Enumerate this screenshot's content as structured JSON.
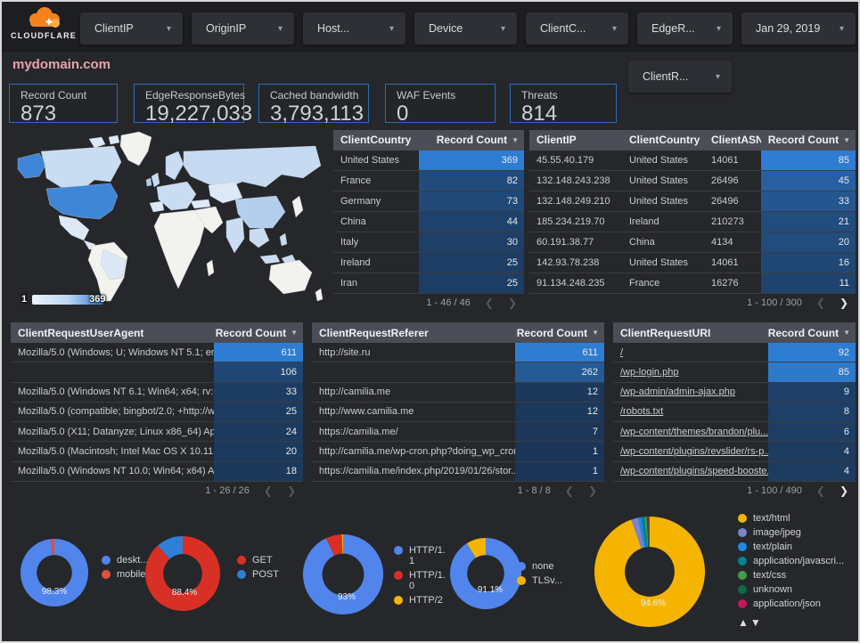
{
  "header": {
    "logo_text": "CLOUDFLARE",
    "filters": [
      {
        "label": "ClientIP"
      },
      {
        "label": "OriginIP"
      },
      {
        "label": "Host..."
      },
      {
        "label": "Device"
      },
      {
        "label": "ClientC..."
      },
      {
        "label": "EdgeR..."
      }
    ],
    "date_label": "Jan 29, 2019",
    "secondary_filter_label": "ClientR..."
  },
  "title": "mydomain.com",
  "scorecards": [
    {
      "label": "Record Count",
      "value": "873"
    },
    {
      "label": "EdgeResponseBytes",
      "value": "19,227,033"
    },
    {
      "label": "Cached bandwidth",
      "value": "3,793,113"
    },
    {
      "label": "WAF Events",
      "value": "0"
    },
    {
      "label": "Threats",
      "value": "814"
    }
  ],
  "map": {
    "legend_min": "1",
    "legend_max": "369"
  },
  "icons": {
    "caret": "▾",
    "sort_desc": "▼",
    "sort_asc": "▲",
    "chevron_left": "❮",
    "chevron_right": "❯"
  },
  "colors": {
    "bar_low": "#1B3555",
    "bar_high": "#2E7DD2",
    "accent_blue": "#2b6cb8",
    "title_pink": "#e8a3ab"
  },
  "tables": [
    {
      "name": "client-country",
      "headers": [
        "ClientCountry",
        "Record Count"
      ],
      "value_col": 1,
      "max": 369,
      "links": false,
      "rows": [
        [
          "United States",
          369
        ],
        [
          "France",
          82
        ],
        [
          "Germany",
          73
        ],
        [
          "China",
          44
        ],
        [
          "Italy",
          30
        ],
        [
          "Ireland",
          25
        ],
        [
          "Iran",
          25
        ]
      ],
      "pagination": {
        "range": "1 - 46 / 46",
        "prev_active": false,
        "next_active": false
      }
    },
    {
      "name": "client-ip",
      "headers": [
        "ClientIP",
        "ClientCountry",
        "ClientASN",
        "Record Count"
      ],
      "value_col": 3,
      "max": 85,
      "links": false,
      "rows": [
        [
          "45.55.40.179",
          "United States",
          "14061",
          85
        ],
        [
          "132.148.243.238",
          "United States",
          "26496",
          45
        ],
        [
          "132.148.249.210",
          "United States",
          "26496",
          33
        ],
        [
          "185.234.219.70",
          "Ireland",
          "210273",
          21
        ],
        [
          "60.191.38.77",
          "China",
          "4134",
          20
        ],
        [
          "142.93.78.238",
          "United States",
          "14061",
          16
        ],
        [
          "91.134.248.235",
          "France",
          "16276",
          11
        ]
      ],
      "pagination": {
        "range": "1 - 100 / 300",
        "prev_active": false,
        "next_active": true
      }
    },
    {
      "name": "client-request-user-agent",
      "headers": [
        "ClientRequestUserAgent",
        "Record Count"
      ],
      "value_col": 1,
      "max": 611,
      "links": false,
      "rows": [
        [
          "Mozilla/5.0 (Windows; U; Windows NT 5.1; en-U...",
          611
        ],
        [
          "",
          106
        ],
        [
          "Mozilla/5.0 (Windows NT 6.1; Win64; x64; rv:64...",
          33
        ],
        [
          "Mozilla/5.0 (compatible; bingbot/2.0; +http://w...",
          25
        ],
        [
          "Mozilla/5.0 (X11; Datanyze; Linux x86_64) Appl...",
          24
        ],
        [
          "Mozilla/5.0 (Macintosh; Intel Mac OS X 10.11; r...",
          20
        ],
        [
          "Mozilla/5.0 (Windows NT 10.0; Win64; x64) App...",
          18
        ]
      ],
      "pagination": {
        "range": "1 - 26 / 26",
        "prev_active": false,
        "next_active": false
      }
    },
    {
      "name": "client-request-referer",
      "headers": [
        "ClientRequestReferer",
        "Record Count"
      ],
      "value_col": 1,
      "max": 611,
      "links": false,
      "rows": [
        [
          "http://site.ru",
          611
        ],
        [
          "",
          262
        ],
        [
          "http://camilia.me",
          12
        ],
        [
          "http://www.camilia.me",
          12
        ],
        [
          "https://camilia.me/",
          7
        ],
        [
          "http://camilia.me/wp-cron.php?doing_wp_cron...",
          1
        ],
        [
          "https://camilia.me/index.php/2019/01/26/stor...",
          1
        ]
      ],
      "pagination": {
        "range": "1 - 8 / 8",
        "prev_active": false,
        "next_active": false
      }
    },
    {
      "name": "client-request-uri",
      "headers": [
        "ClientRequestURI",
        "Record Count"
      ],
      "value_col": 1,
      "max": 92,
      "links": true,
      "rows": [
        [
          "/",
          92
        ],
        [
          "/wp-login.php",
          85
        ],
        [
          "/wp-admin/admin-ajax.php",
          9
        ],
        [
          "/robots.txt",
          8
        ],
        [
          "/wp-content/themes/brandon/plu...",
          6
        ],
        [
          "/wp-content/plugins/revslider/rs-p...",
          4
        ],
        [
          "/wp-content/plugins/speed-booste...",
          4
        ]
      ],
      "pagination": {
        "range": "1 - 100 / 490",
        "prev_active": false,
        "next_active": true
      }
    }
  ],
  "donuts": [
    {
      "name": "device-type",
      "percent_label": "98.3%",
      "slices": [
        {
          "label": "deskt...",
          "value": 98.3,
          "color": "#5185ec"
        },
        {
          "label": "mobile",
          "value": 1.7,
          "color": "#e0503a"
        }
      ]
    },
    {
      "name": "http-method",
      "percent_label": "88.4%",
      "slices": [
        {
          "label": "GET",
          "value": 88.4,
          "color": "#d93025"
        },
        {
          "label": "POST",
          "value": 11.6,
          "color": "#2f7fd6"
        }
      ]
    },
    {
      "name": "http-version",
      "percent_label": "93%",
      "slices": [
        {
          "label": "HTTP/1.1",
          "value": 93,
          "color": "#5185ec"
        },
        {
          "label": "HTTP/1.0",
          "value": 6.5,
          "color": "#d93025"
        },
        {
          "label": "HTTP/2",
          "value": 0.5,
          "color": "#f5b400"
        }
      ]
    },
    {
      "name": "tls-version",
      "percent_label": "91.1%",
      "slices": [
        {
          "label": "none",
          "value": 91.1,
          "color": "#5185ec"
        },
        {
          "label": "TLSv...",
          "value": 8.9,
          "color": "#f5b400"
        }
      ]
    },
    {
      "name": "content-type",
      "percent_label": "94.6%",
      "slices": [
        {
          "label": "text/html",
          "value": 94.6,
          "color": "#f5b400"
        },
        {
          "label": "image/jpeg",
          "value": 2.0,
          "color": "#7986cb"
        },
        {
          "label": "text/plain",
          "value": 1.0,
          "color": "#1e88e5"
        },
        {
          "label": "application/javascri...",
          "value": 0.9,
          "color": "#00838f"
        },
        {
          "label": "text/css",
          "value": 0.6,
          "color": "#43a047"
        },
        {
          "label": "unknown",
          "value": 0.5,
          "color": "#0e6b45"
        },
        {
          "label": "application/json",
          "value": 0.4,
          "color": "#c2185b"
        }
      ]
    }
  ]
}
